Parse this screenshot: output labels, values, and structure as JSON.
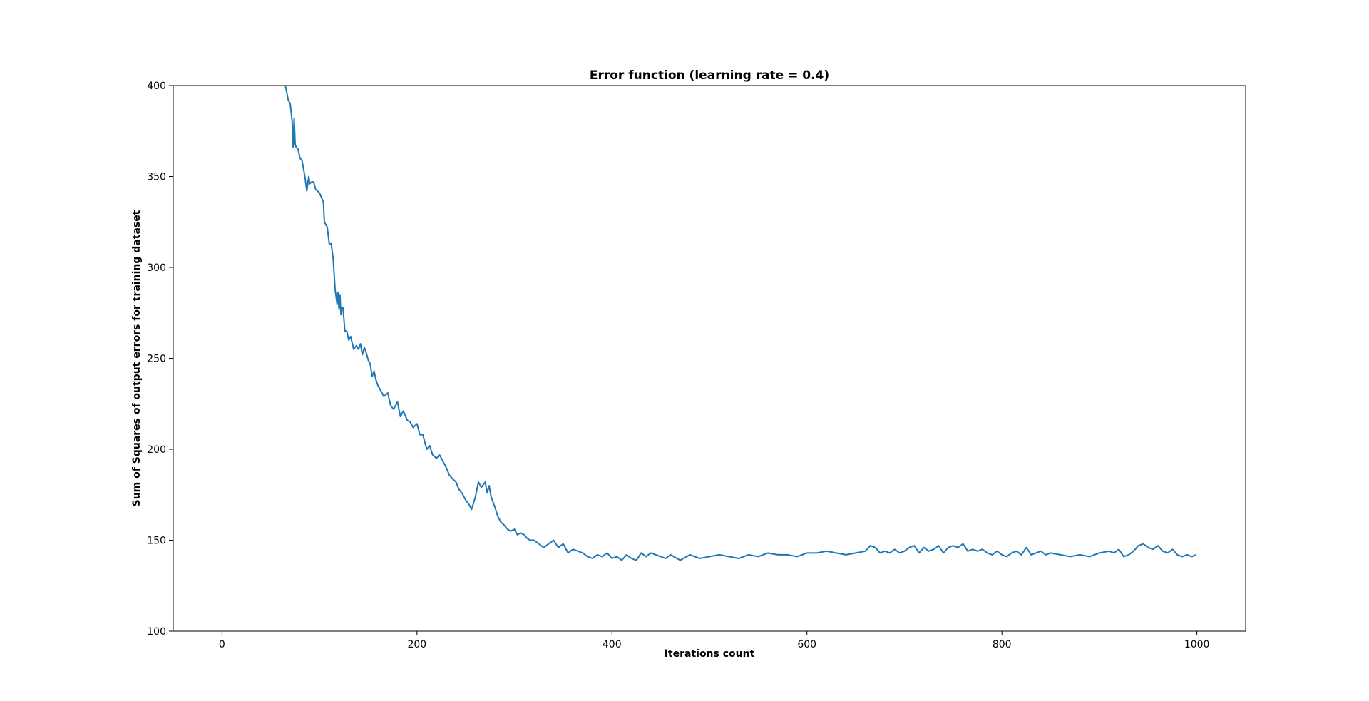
{
  "chart_data": {
    "type": "line",
    "title": "Error function (learning rate = 0.4)",
    "xlabel": "Iterations count",
    "ylabel": "Sum of Squares of output errors for training dataset",
    "xlim": [
      -50,
      1050
    ],
    "ylim": [
      100,
      400
    ],
    "xticks": [
      0,
      200,
      400,
      600,
      800,
      1000
    ],
    "yticks": [
      100,
      150,
      200,
      250,
      300,
      350,
      400
    ],
    "grid": false,
    "line_color": "#1f77b4",
    "series": [
      {
        "x": [
          65,
          68,
          70,
          72,
          73,
          74,
          75,
          76,
          78,
          80,
          82,
          85,
          87,
          89,
          90,
          92,
          94,
          96,
          100,
          104,
          105,
          108,
          110,
          112,
          114,
          116,
          118,
          119,
          120,
          121,
          122,
          123,
          124,
          125,
          126,
          128,
          130,
          132,
          135,
          138,
          140,
          142,
          144,
          146,
          148,
          150,
          152,
          154,
          156,
          158,
          160,
          163,
          166,
          170,
          173,
          176,
          180,
          183,
          186,
          190,
          193,
          196,
          200,
          203,
          206,
          210,
          213,
          216,
          220,
          223,
          226,
          230,
          233,
          236,
          240,
          243,
          246,
          250,
          253,
          256,
          260,
          263,
          266,
          270,
          272,
          274,
          276,
          280,
          283,
          286,
          290,
          293,
          296,
          300,
          303,
          306,
          310,
          313,
          316,
          320,
          325,
          330,
          335,
          340,
          345,
          350,
          355,
          360,
          365,
          370,
          375,
          380,
          385,
          390,
          395,
          400,
          405,
          410,
          415,
          420,
          425,
          430,
          435,
          440,
          445,
          450,
          455,
          460,
          470,
          480,
          490,
          500,
          510,
          520,
          530,
          540,
          550,
          560,
          570,
          580,
          590,
          600,
          610,
          620,
          630,
          640,
          650,
          660,
          665,
          670,
          675,
          680,
          685,
          690,
          695,
          700,
          705,
          710,
          715,
          720,
          725,
          730,
          735,
          740,
          745,
          750,
          755,
          760,
          765,
          770,
          775,
          780,
          785,
          790,
          795,
          800,
          805,
          810,
          815,
          820,
          825,
          830,
          835,
          840,
          845,
          850,
          860,
          870,
          880,
          890,
          900,
          910,
          915,
          920,
          925,
          930,
          935,
          940,
          945,
          950,
          955,
          960,
          965,
          970,
          975,
          980,
          985,
          990,
          995,
          999
        ],
        "y": [
          400,
          392,
          390,
          380,
          366,
          382,
          368,
          366,
          365,
          360,
          359,
          350,
          342,
          350,
          346,
          347,
          347,
          343,
          341,
          336,
          325,
          322,
          313,
          313,
          305,
          288,
          280,
          286,
          277,
          285,
          274,
          278,
          278,
          272,
          265,
          265,
          260,
          262,
          255,
          257,
          255,
          258,
          252,
          256,
          253,
          249,
          247,
          240,
          243,
          238,
          235,
          232,
          229,
          231,
          224,
          222,
          226,
          218,
          221,
          216,
          215,
          212,
          214,
          208,
          208,
          200,
          202,
          197,
          195,
          197,
          194,
          190,
          186,
          184,
          182,
          178,
          176,
          172,
          170,
          167,
          174,
          182,
          179,
          182,
          176,
          180,
          174,
          168,
          163,
          160,
          158,
          156,
          155,
          156,
          153,
          154,
          153,
          151,
          150,
          150,
          148,
          146,
          148,
          150,
          146,
          148,
          143,
          145,
          144,
          143,
          141,
          140,
          142,
          141,
          143,
          140,
          141,
          139,
          142,
          140,
          139,
          143,
          141,
          143,
          142,
          141,
          140,
          142,
          139,
          142,
          140,
          141,
          142,
          141,
          140,
          142,
          141,
          143,
          142,
          142,
          141,
          143,
          143,
          144,
          143,
          142,
          143,
          144,
          147,
          146,
          143,
          144,
          143,
          145,
          143,
          144,
          146,
          147,
          143,
          146,
          144,
          145,
          147,
          143,
          146,
          147,
          146,
          148,
          144,
          145,
          144,
          145,
          143,
          142,
          144,
          142,
          141,
          143,
          144,
          142,
          146,
          142,
          143,
          144,
          142,
          143,
          142,
          141,
          142,
          141,
          143,
          144,
          143,
          145,
          141,
          142,
          144,
          147,
          148,
          146,
          145,
          147,
          144,
          143,
          145,
          142,
          141,
          142,
          141,
          142
        ]
      }
    ]
  }
}
